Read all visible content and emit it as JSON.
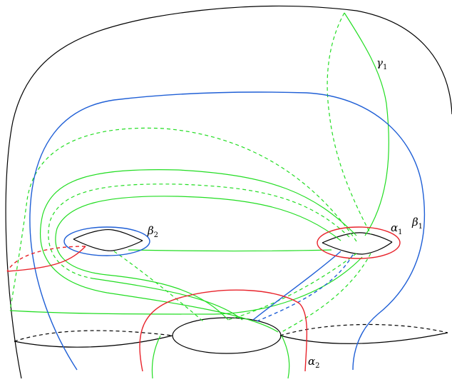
{
  "labels": {
    "gamma1": {
      "base": "γ",
      "sub": "1"
    },
    "beta2": {
      "base": "β",
      "sub": "2"
    },
    "alpha1": {
      "base": "α",
      "sub": "1"
    },
    "beta1": {
      "base": "β",
      "sub": "1"
    },
    "alpha2": {
      "base": "α",
      "sub": "2"
    }
  },
  "colors": {
    "surface": "#000000",
    "green_curves": "#22dd22",
    "blue_curves": "#1f5fd6",
    "red_curves": "#e8232b"
  }
}
